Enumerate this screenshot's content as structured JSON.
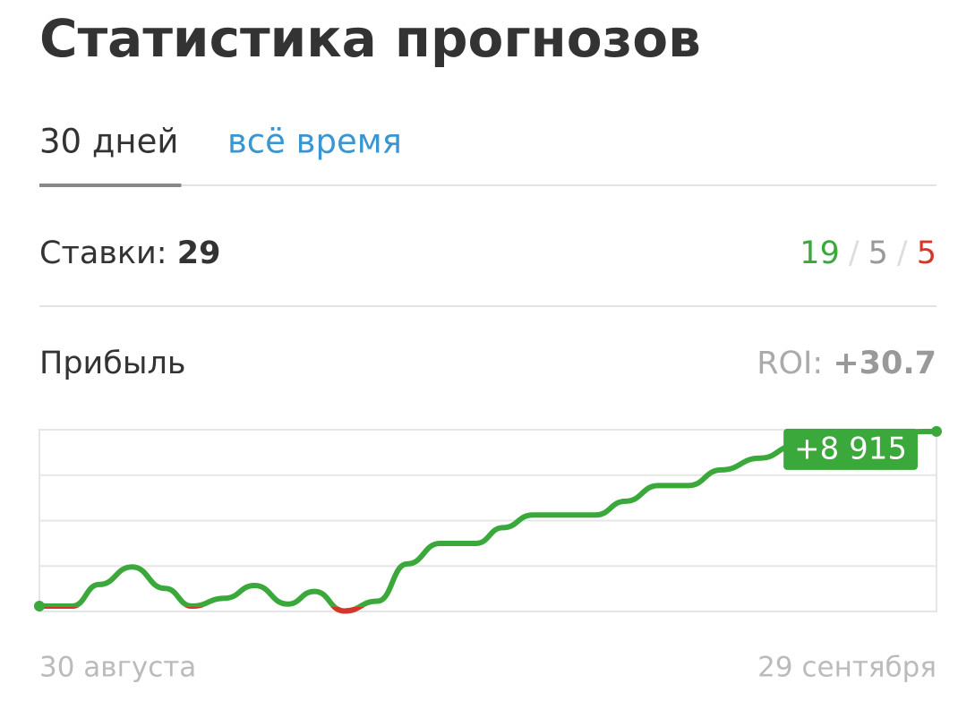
{
  "header": {
    "title": "Статистика прогнозов"
  },
  "tabs": {
    "items": [
      "30 дней",
      "всё время"
    ],
    "active": 0
  },
  "bets": {
    "label": "Ставки:",
    "total": 29,
    "won": 19,
    "returned": 5,
    "lost": 5,
    "separator": "/"
  },
  "profit": {
    "label": "Прибыль",
    "roi_label": "ROI:",
    "roi": "+30.7"
  },
  "chart_data": {
    "type": "line",
    "x": [
      0,
      1.1,
      2,
      3.1,
      4.2,
      5.1,
      6.2,
      7.2,
      8.3,
      9.2,
      10.2,
      11.3,
      12.3,
      13.4,
      14.6,
      15.5,
      16.5,
      18.6,
      19.6,
      20.7,
      21.7,
      22.8,
      24.1,
      25.3,
      26.8,
      30
    ],
    "values": [
      0,
      0,
      1100,
      2000,
      900,
      0,
      400,
      1050,
      100,
      750,
      -250,
      250,
      2150,
      3200,
      3200,
      4000,
      4650,
      4650,
      5350,
      6150,
      6150,
      6950,
      7550,
      8200,
      8750,
      8915
    ],
    "value_labels": [
      null,
      null,
      null,
      null,
      null,
      null,
      null,
      null,
      null,
      null,
      null,
      null,
      null,
      null,
      null,
      null,
      null,
      null,
      null,
      null,
      null,
      null,
      null,
      null,
      null,
      "+8 915"
    ],
    "xlim": [
      0,
      30
    ],
    "ylim": [
      -275,
      9000
    ],
    "color": "#3aa83a",
    "negative_color": "#d8352a",
    "x_range_labels": [
      "30 августа",
      "29 сентября"
    ]
  }
}
